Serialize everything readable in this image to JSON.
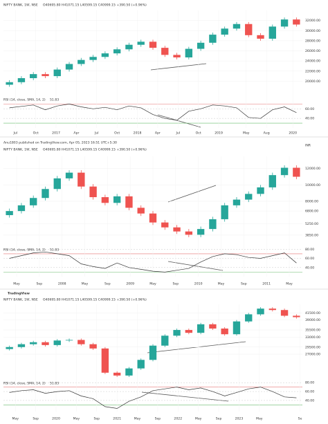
{
  "chart_data": [
    {
      "type": "candlestick",
      "title": "NIFTY BANK, 1W, NSE",
      "ohlc_text": "O40695.80 H41071.15 L40599.15 C40999.15 +390.50 (+0.96%)",
      "up_color": "#26a69a",
      "down_color": "#ef5350",
      "xlim": [
        -0.5,
        24.5
      ],
      "xticks": [
        {
          "value": 0.5,
          "label": "Jul"
        },
        {
          "value": 2.2,
          "label": "Oct"
        },
        {
          "value": 3.9,
          "label": "2017"
        },
        {
          "value": 5.6,
          "label": "Apr"
        },
        {
          "value": 7.3,
          "label": "Jul"
        },
        {
          "value": 9.0,
          "label": "Oct"
        },
        {
          "value": 10.7,
          "label": "2018"
        },
        {
          "value": 12.4,
          "label": "Apr"
        },
        {
          "value": 14.1,
          "label": "Jul"
        },
        {
          "value": 15.8,
          "label": "Oct"
        },
        {
          "value": 17.5,
          "label": "2019"
        },
        {
          "value": 19.8,
          "label": "May"
        },
        {
          "value": 21.5,
          "label": "Aug"
        },
        {
          "value": 23.7,
          "label": "2020"
        }
      ],
      "ylim": [
        18000,
        34000
      ],
      "yticks": [
        {
          "value": 20000,
          "label": "20000.00"
        },
        {
          "value": 22000,
          "label": "22000.00"
        },
        {
          "value": 24000,
          "label": "24000.00"
        },
        {
          "value": 26000,
          "label": "26000.00"
        },
        {
          "value": 28000,
          "label": "28000.00"
        },
        {
          "value": 30000,
          "label": "30000.00"
        },
        {
          "value": 32000,
          "label": "32000.00"
        }
      ],
      "open": [
        19300,
        19800,
        20600,
        21400,
        21000,
        22300,
        23400,
        24200,
        24800,
        25500,
        26300,
        27200,
        27800,
        26600,
        25200,
        24700,
        26400,
        27600,
        29200,
        30400,
        31300,
        29100,
        28400,
        30800,
        32200
      ],
      "high": [
        20200,
        21000,
        21800,
        21800,
        22700,
        23800,
        24600,
        25200,
        25900,
        26700,
        27600,
        28200,
        28200,
        27000,
        25600,
        26800,
        28000,
        29600,
        30800,
        31700,
        31700,
        29500,
        31200,
        32600,
        32600
      ],
      "low": [
        18900,
        19400,
        20200,
        20600,
        20600,
        21900,
        23000,
        23800,
        24400,
        25100,
        25900,
        26800,
        26200,
        24800,
        24300,
        24300,
        26000,
        27200,
        28800,
        30000,
        28700,
        28000,
        28000,
        30400,
        30800
      ],
      "close": [
        19800,
        20600,
        21400,
        21000,
        22300,
        23400,
        24200,
        24800,
        25500,
        26300,
        27200,
        27800,
        26600,
        25200,
        24700,
        26400,
        27600,
        29200,
        30400,
        31300,
        29100,
        28400,
        30800,
        32200,
        31200
      ],
      "rsi": {
        "label": "RSI (14, close, SMA, 14, 2)",
        "value_text": "51.83",
        "color": "#333333",
        "ylim": [
          20,
          85
        ],
        "bands": [
          70,
          30
        ],
        "yticks": [
          {
            "value": 60,
            "label": "60.00"
          },
          {
            "value": 40,
            "label": "40.00"
          }
        ],
        "values": [
          62,
          65,
          68,
          58,
          66,
          70,
          64,
          60,
          63,
          58,
          66,
          62,
          48,
          40,
          36,
          55,
          60,
          68,
          66,
          62,
          42,
          40,
          58,
          64,
          52
        ]
      }
    },
    {
      "type": "candlestick",
      "publisher": "Anu1803 published on TradingView.com, Apr 05, 2023 16:51 UTC+5:30",
      "currency": "INR",
      "title": "NIFTY BANK, 1W, NSE",
      "ohlc_text": "O40695.80 H41071.15 L40599.15 C40999.15 +390.50 (+0.96%)",
      "up_color": "#26a69a",
      "down_color": "#ef5350",
      "xlim": [
        -0.5,
        24.5
      ],
      "xticks": [
        {
          "value": 0.6,
          "label": "May"
        },
        {
          "value": 2.5,
          "label": "Sep"
        },
        {
          "value": 4.4,
          "label": "2008"
        },
        {
          "value": 6.3,
          "label": "May"
        },
        {
          "value": 8.2,
          "label": "Sep"
        },
        {
          "value": 10.1,
          "label": "2009"
        },
        {
          "value": 12.0,
          "label": "May"
        },
        {
          "value": 13.9,
          "label": "Sep"
        },
        {
          "value": 15.8,
          "label": "2010"
        },
        {
          "value": 17.7,
          "label": "May"
        },
        {
          "value": 19.6,
          "label": "Sep"
        },
        {
          "value": 21.5,
          "label": "2011"
        },
        {
          "value": 23.4,
          "label": "May"
        }
      ],
      "ylim": [
        3000,
        13500
      ],
      "yticks": [
        {
          "value": 3850,
          "label": "3850.00"
        },
        {
          "value": 5250,
          "label": "5250.00"
        },
        {
          "value": 6800,
          "label": "6800.00"
        },
        {
          "value": 8000,
          "label": "8000.00"
        },
        {
          "value": 10000,
          "label": "10000.00"
        },
        {
          "value": 12000,
          "label": "12000.00"
        }
      ],
      "open": [
        6300,
        6800,
        7500,
        8400,
        9500,
        10800,
        11500,
        9800,
        8500,
        7800,
        8600,
        7200,
        6500,
        5400,
        4800,
        4300,
        3900,
        4600,
        5800,
        7500,
        8200,
        8900,
        9700,
        11200,
        12100
      ],
      "high": [
        7100,
        7800,
        8700,
        9800,
        11100,
        11800,
        11800,
        10100,
        8800,
        8900,
        8900,
        7500,
        6800,
        5700,
        5100,
        4600,
        4900,
        6100,
        7800,
        8500,
        9200,
        10000,
        11500,
        12400,
        12400
      ],
      "low": [
        6000,
        6500,
        7200,
        8100,
        9200,
        10500,
        9500,
        8200,
        7500,
        7500,
        6900,
        6200,
        5100,
        4500,
        4000,
        3600,
        3600,
        4300,
        5500,
        7200,
        7900,
        8600,
        9400,
        10900,
        10700
      ],
      "close": [
        6800,
        7500,
        8400,
        9500,
        10800,
        11500,
        9800,
        8500,
        7800,
        8600,
        7200,
        6500,
        5400,
        4800,
        4300,
        3900,
        4600,
        5800,
        7500,
        8200,
        8900,
        9700,
        11200,
        12100,
        11000
      ],
      "rsi": {
        "label": "RSI (14, close, SMA, 14, 2)",
        "value_text": "51.83",
        "color": "#333333",
        "ylim": [
          20,
          85
        ],
        "bands": [
          70,
          30
        ],
        "yticks": [
          {
            "value": 80,
            "label": "80.00"
          },
          {
            "value": 60,
            "label": "60.00"
          },
          {
            "value": 40,
            "label": "40.00"
          }
        ],
        "values": [
          60,
          66,
          72,
          74,
          70,
          66,
          48,
          42,
          38,
          50,
          40,
          36,
          32,
          30,
          34,
          38,
          52,
          64,
          70,
          68,
          62,
          60,
          66,
          72,
          50
        ]
      }
    },
    {
      "type": "candlestick",
      "logo": "TradingView",
      "title": "NIFTY BANK, 1W, NSE",
      "ohlc_text": "O40695.80 H41071.15 L40599.15 C40999.15 +390.50 (+0.96%)",
      "up_color": "#26a69a",
      "down_color": "#ef5350",
      "xlim": [
        -0.5,
        24.5
      ],
      "xticks": [
        {
          "value": 0.5,
          "label": "May"
        },
        {
          "value": 2.2,
          "label": "Sep"
        },
        {
          "value": 3.9,
          "label": "2020"
        },
        {
          "value": 5.6,
          "label": "May"
        },
        {
          "value": 7.3,
          "label": "Sep"
        },
        {
          "value": 9.0,
          "label": "2021"
        },
        {
          "value": 10.7,
          "label": "May"
        },
        {
          "value": 12.4,
          "label": "Sep"
        },
        {
          "value": 14.1,
          "label": "2022"
        },
        {
          "value": 15.8,
          "label": "May"
        },
        {
          "value": 17.5,
          "label": "Sep"
        },
        {
          "value": 19.2,
          "label": "2023"
        },
        {
          "value": 20.9,
          "label": "May"
        },
        {
          "value": 24.3,
          "label": "Se"
        }
      ],
      "ylim": [
        19000,
        44500
      ],
      "yticks": [
        {
          "value": 27000,
          "label": "27000.00"
        },
        {
          "value": 29500,
          "label": "29500.00"
        },
        {
          "value": 33000,
          "label": "33000.00"
        },
        {
          "value": 35500,
          "label": "35500.00"
        },
        {
          "value": 39000,
          "label": "39000.00"
        },
        {
          "value": 41500,
          "label": "41500.00"
        }
      ],
      "open": [
        28800,
        29500,
        30500,
        31200,
        30200,
        31800,
        32000,
        30500,
        29000,
        20500,
        19500,
        22000,
        25000,
        30000,
        33500,
        35500,
        34500,
        37500,
        36000,
        34000,
        38500,
        41000,
        43000,
        42500,
        40500
      ],
      "high": [
        30000,
        31000,
        31700,
        31700,
        32300,
        32500,
        32500,
        31000,
        29500,
        21000,
        22500,
        25500,
        30500,
        34000,
        36000,
        36000,
        38000,
        38000,
        36500,
        39000,
        41500,
        43500,
        43500,
        43000,
        41000
      ],
      "low": [
        28300,
        29000,
        30000,
        29700,
        29700,
        31300,
        30000,
        28500,
        20000,
        19000,
        19000,
        21500,
        24500,
        29500,
        33000,
        34000,
        34000,
        35500,
        33500,
        33500,
        38000,
        40500,
        42000,
        40000,
        39500
      ],
      "close": [
        29500,
        30500,
        31200,
        30200,
        31800,
        32000,
        30500,
        29000,
        20500,
        19500,
        22000,
        25000,
        30000,
        33500,
        35500,
        34500,
        37500,
        36000,
        34000,
        38500,
        41000,
        43000,
        42500,
        40500,
        40000
      ],
      "rsi": {
        "label": "RSI (14, close, SMA, 14, 2)",
        "value_text": "51.83",
        "color": "#333333",
        "ylim": [
          15,
          85
        ],
        "bands": [
          70,
          30
        ],
        "yticks": [
          {
            "value": 80,
            "label": "80.00"
          },
          {
            "value": 60,
            "label": "60.00"
          },
          {
            "value": 40,
            "label": "40.00"
          }
        ],
        "values": [
          58,
          62,
          64,
          56,
          60,
          62,
          50,
          44,
          26,
          22,
          38,
          48,
          62,
          66,
          70,
          64,
          68,
          60,
          50,
          58,
          66,
          70,
          60,
          48,
          46
        ]
      }
    }
  ]
}
